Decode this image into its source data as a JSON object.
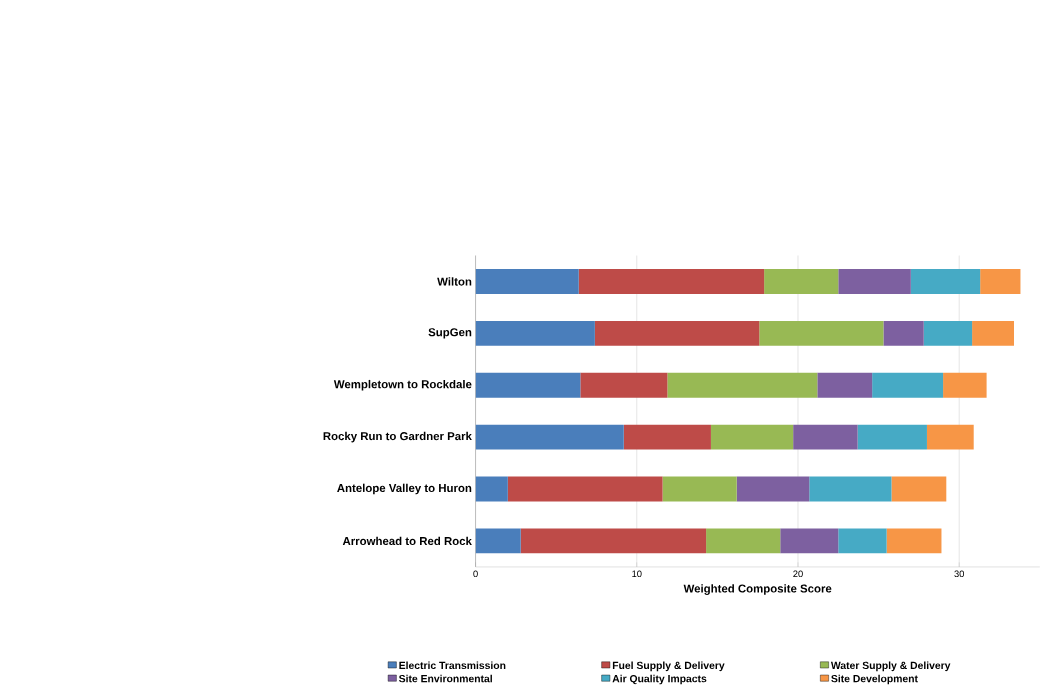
{
  "chart_data": {
    "type": "bar",
    "orientation": "horizontal",
    "stacked": true,
    "categories": [
      "Wilton",
      "SupGen",
      "Wempletown to Rockdale",
      "Rocky Run to Gardner Park",
      "Antelope Valley to Huron",
      "Arrowhead to Red Rock"
    ],
    "series": [
      {
        "name": "Electric Transmission",
        "color": "#4a7ebb",
        "values": [
          6.4,
          7.4,
          6.5,
          9.2,
          2.0,
          2.8
        ]
      },
      {
        "name": "Fuel Supply & Delivery",
        "color": "#be4b48",
        "values": [
          11.5,
          10.2,
          5.4,
          5.4,
          9.6,
          11.5
        ]
      },
      {
        "name": "Water Supply & Delivery",
        "color": "#98b954",
        "values": [
          4.6,
          7.7,
          9.3,
          5.1,
          4.6,
          4.6
        ]
      },
      {
        "name": "Site Environmental",
        "color": "#7d60a0",
        "values": [
          4.5,
          2.5,
          3.4,
          4.0,
          4.5,
          3.6
        ]
      },
      {
        "name": "Air Quality Impacts",
        "color": "#46aac5",
        "values": [
          4.3,
          3.0,
          4.4,
          4.3,
          5.1,
          3.0
        ]
      },
      {
        "name": "Site Development",
        "color": "#f79646",
        "values": [
          2.5,
          2.6,
          2.7,
          2.9,
          3.4,
          3.4
        ]
      }
    ],
    "xlabel": "Weighted Composite Score",
    "xlim": [
      0,
      35
    ],
    "xticks": [
      0,
      10,
      20,
      30
    ],
    "grid": "x",
    "legend": "bottom"
  }
}
